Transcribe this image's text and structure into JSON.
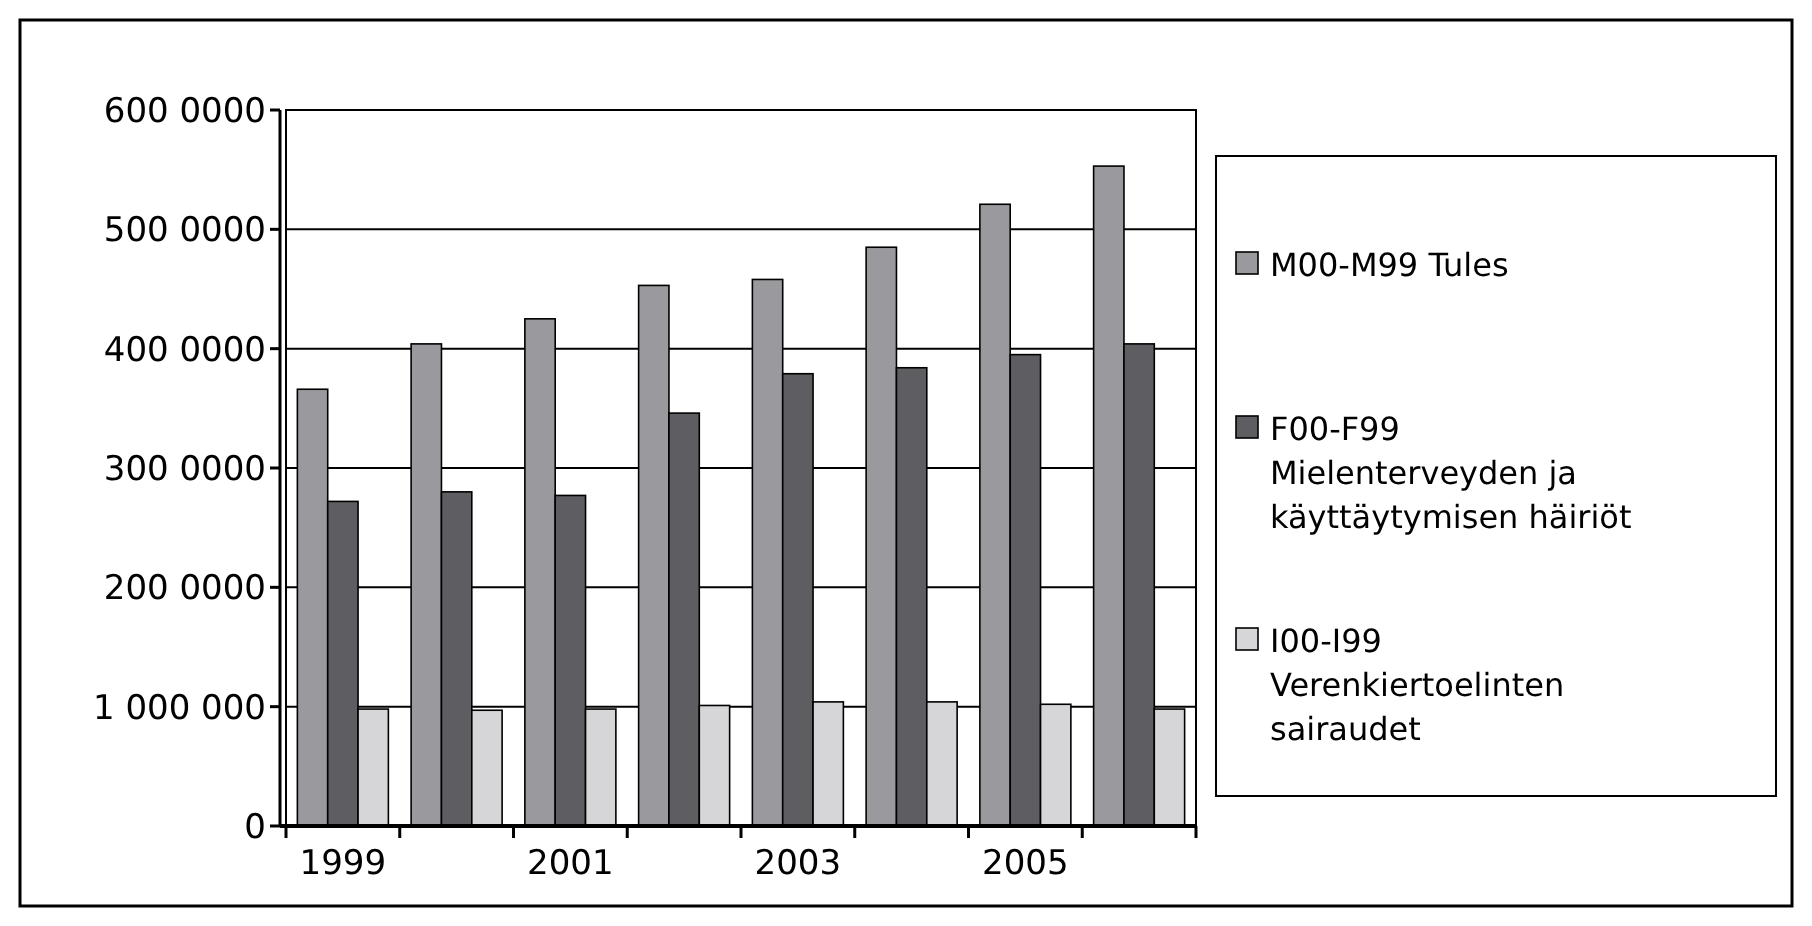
{
  "chart_data": {
    "type": "bar",
    "categories": [
      "1999",
      null,
      "2001",
      null,
      "2003",
      null,
      "2005",
      null
    ],
    "series": [
      {
        "name": "M00-M99 Tules",
        "color": "#9a9a9e",
        "values": [
          3660000,
          4040000,
          4250000,
          4530000,
          4580000,
          4850000,
          5210000,
          5530000
        ]
      },
      {
        "name": "F00-F99 Mielenterveyden ja käyttäytymisen häiriöt",
        "color": "#5e5e62",
        "values": [
          2720000,
          2800000,
          2770000,
          3460000,
          3790000,
          3840000,
          3950000,
          4040000
        ]
      },
      {
        "name": "I00-I99 Verenkiertoelinten sairaudet",
        "color": "#d6d6d8",
        "values": [
          980000,
          970000,
          980000,
          1010000,
          1040000,
          1040000,
          1020000,
          980000
        ]
      }
    ],
    "ylim": [
      0,
      6000000
    ],
    "yticks": [
      0,
      {
        "value": 1000000,
        "label": "1 000 000"
      },
      {
        "value": 2000000,
        "label": "200 0000"
      },
      {
        "value": 3000000,
        "label": "300 0000"
      },
      {
        "value": 4000000,
        "label": "400 0000"
      },
      {
        "value": 5000000,
        "label": "500 0000"
      },
      {
        "value": 6000000,
        "label": "600 0000"
      }
    ],
    "grid": "y",
    "legend": "right"
  }
}
